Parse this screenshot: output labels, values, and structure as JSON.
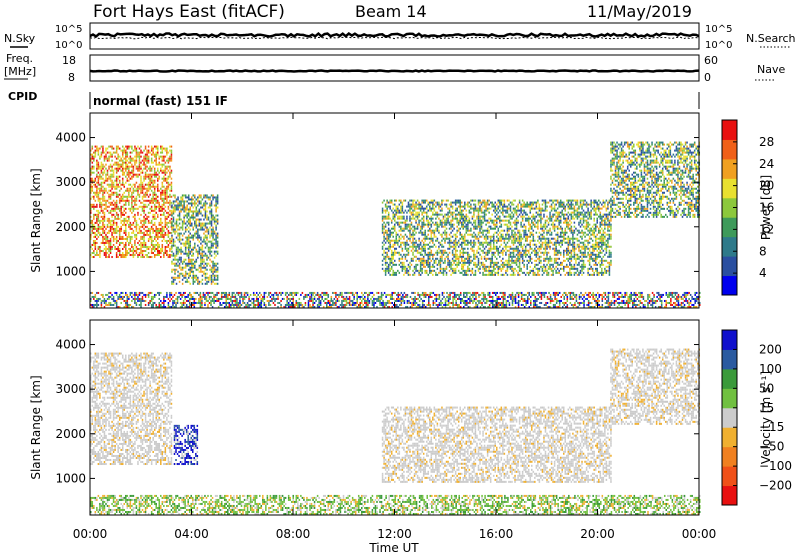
{
  "header": {
    "station": "Fort Hays East (fitACF)",
    "beam": "Beam 14",
    "date": "11/May/2019"
  },
  "strip_labels": {
    "nsky": "N.Sky",
    "nsearch": "N.Search",
    "freq_top": "Freq.",
    "freq_unit": "[MHz]",
    "nave": "Nave",
    "cpid": "CPID",
    "cpid_value": "normal (fast) 151 IF",
    "noise_ticks": [
      "10^5",
      "10^0"
    ],
    "freq_ticks": [
      "18",
      "8"
    ],
    "nave_ticks": [
      "60",
      "0"
    ]
  },
  "chart_data": [
    {
      "type": "heatmap",
      "name": "power",
      "ylabel": "Slant Range [km]",
      "yticks": [
        1000,
        2000,
        3000,
        4000
      ],
      "ylim": [
        180,
        4550
      ],
      "xlim": [
        0,
        24
      ],
      "colorbar": {
        "label": "Power [dB]",
        "ticks": [
          "28",
          "24",
          "20",
          "16",
          "12",
          "8",
          "4"
        ],
        "colors": [
          "#0000ee",
          "#2a4fa0",
          "#2e7a8a",
          "#3e9a5a",
          "#8cc83c",
          "#e8e030",
          "#f0a020",
          "#f06018",
          "#e81010"
        ]
      },
      "echo_regions": [
        {
          "desc": "early strong echoes",
          "t": [
            0.0,
            3.2
          ],
          "range": [
            1300,
            3800
          ],
          "level": "strong"
        },
        {
          "desc": "early band",
          "t": [
            3.2,
            5.0
          ],
          "range": [
            700,
            2700
          ],
          "level": "medium"
        },
        {
          "desc": "afternoon arc",
          "t": [
            11.5,
            20.5
          ],
          "range": [
            900,
            2600
          ],
          "level": "medium"
        },
        {
          "desc": "evening arc",
          "t": [
            20.5,
            24.0
          ],
          "range": [
            2200,
            3900
          ],
          "level": "medium"
        },
        {
          "desc": "ground scatter",
          "t": [
            0.0,
            24.0
          ],
          "range": [
            180,
            500
          ],
          "level": "weak"
        }
      ]
    },
    {
      "type": "heatmap",
      "name": "velocity",
      "ylabel": "Slant Range [km]",
      "yticks": [
        1000,
        2000,
        3000,
        4000
      ],
      "ylim": [
        180,
        4550
      ],
      "xlim": [
        0,
        24
      ],
      "xticks": [
        "00:00",
        "04:00",
        "08:00",
        "12:00",
        "16:00",
        "20:00",
        "00:00"
      ],
      "xlabel": "Time UT",
      "colorbar": {
        "label": "Velocity [m s⁻¹]",
        "ticks": [
          "200",
          "100",
          "50",
          "15",
          "−15",
          "−50",
          "−100",
          "−200"
        ],
        "colors": [
          "#e81010",
          "#f05018",
          "#f08020",
          "#f0b030",
          "#cccccc",
          "#70c040",
          "#3a9a3a",
          "#2a5aa0",
          "#1010cc"
        ]
      },
      "echo_regions": [
        {
          "desc": "early grey/amber echoes",
          "t": [
            0.0,
            3.2
          ],
          "range": [
            1300,
            3800
          ],
          "color": "grey"
        },
        {
          "desc": "blue patch",
          "t": [
            3.3,
            4.2
          ],
          "range": [
            1300,
            2200
          ],
          "color": "blue"
        },
        {
          "desc": "afternoon grey arc",
          "t": [
            11.5,
            20.5
          ],
          "range": [
            900,
            2600
          ],
          "color": "grey"
        },
        {
          "desc": "evening grey arc",
          "t": [
            20.5,
            24.0
          ],
          "range": [
            2200,
            3900
          ],
          "color": "grey"
        },
        {
          "desc": "green ground scatter",
          "t": [
            0.0,
            24.0
          ],
          "range": [
            180,
            600
          ],
          "color": "green"
        }
      ]
    }
  ]
}
